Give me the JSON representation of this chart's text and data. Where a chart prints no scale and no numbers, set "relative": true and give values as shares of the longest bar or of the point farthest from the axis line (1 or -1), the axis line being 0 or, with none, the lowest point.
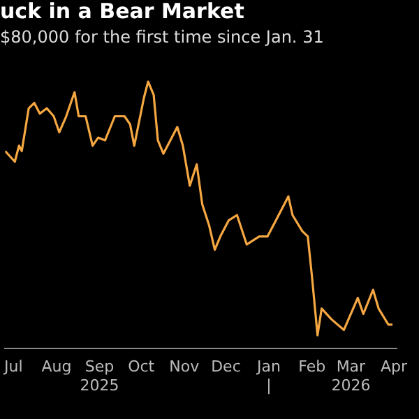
{
  "chart_data": {
    "type": "line",
    "title": "uck in a Bear Market",
    "subtitle": "$80,000 for the first time since Jan. 31",
    "relative": true,
    "legend": false,
    "marker": "none",
    "line_style": "solid",
    "xlim": [
      "2025-06-25",
      "2026-04-03"
    ],
    "xticks": [
      {
        "value": "2025-07-01",
        "label": "Jul"
      },
      {
        "value": "2025-08-01",
        "label": "Aug"
      },
      {
        "value": "2025-09-01",
        "label": "Sep\n2025"
      },
      {
        "value": "2025-10-01",
        "label": "Oct"
      },
      {
        "value": "2025-11-01",
        "label": "Nov"
      },
      {
        "value": "2025-12-01",
        "label": "Dec"
      },
      {
        "value": "2026-01-01",
        "label": "Jan\n|"
      },
      {
        "value": "2026-02-01",
        "label": "Feb"
      },
      {
        "value": "2026-03-01",
        "label": "Mar\n2026"
      },
      {
        "value": "2026-04-01",
        "label": "Apr"
      }
    ],
    "series": [
      {
        "color": "#f5a742",
        "x": [
          "2025-06-25",
          "2025-07-02",
          "2025-07-05",
          "2025-07-07",
          "2025-07-12",
          "2025-07-16",
          "2025-07-20",
          "2025-07-25",
          "2025-07-30",
          "2025-08-03",
          "2025-08-08",
          "2025-08-14",
          "2025-08-17",
          "2025-08-22",
          "2025-08-27",
          "2025-08-31",
          "2025-09-05",
          "2025-09-12",
          "2025-09-19",
          "2025-09-23",
          "2025-09-26",
          "2025-10-03",
          "2025-10-06",
          "2025-10-10",
          "2025-10-13",
          "2025-10-17",
          "2025-10-22",
          "2025-10-27",
          "2025-10-31",
          "2025-11-05",
          "2025-11-10",
          "2025-11-14",
          "2025-11-19",
          "2025-11-23",
          "2025-11-27",
          "2025-12-03",
          "2025-12-09",
          "2025-12-16",
          "2025-12-25",
          "2025-12-31",
          "2026-01-06",
          "2026-01-15",
          "2026-01-18",
          "2026-01-25",
          "2026-01-29",
          "2026-02-01",
          "2026-02-05",
          "2026-02-08",
          "2026-02-15",
          "2026-02-24",
          "2026-03-06",
          "2026-03-10",
          "2026-03-17",
          "2026-03-21",
          "2026-03-28",
          "2026-03-31"
        ],
        "values": [
          0.74,
          0.7,
          0.76,
          0.74,
          0.9,
          0.92,
          0.88,
          0.9,
          0.87,
          0.81,
          0.87,
          0.96,
          0.87,
          0.87,
          0.76,
          0.79,
          0.78,
          0.87,
          0.87,
          0.84,
          0.76,
          0.94,
          1.0,
          0.95,
          0.78,
          0.73,
          0.78,
          0.83,
          0.76,
          0.61,
          0.69,
          0.54,
          0.46,
          0.37,
          0.42,
          0.48,
          0.5,
          0.39,
          0.42,
          0.42,
          0.48,
          0.57,
          0.5,
          0.44,
          0.42,
          0.27,
          0.05,
          0.15,
          0.11,
          0.07,
          0.19,
          0.13,
          0.22,
          0.15,
          0.09,
          0.09
        ]
      }
    ]
  }
}
